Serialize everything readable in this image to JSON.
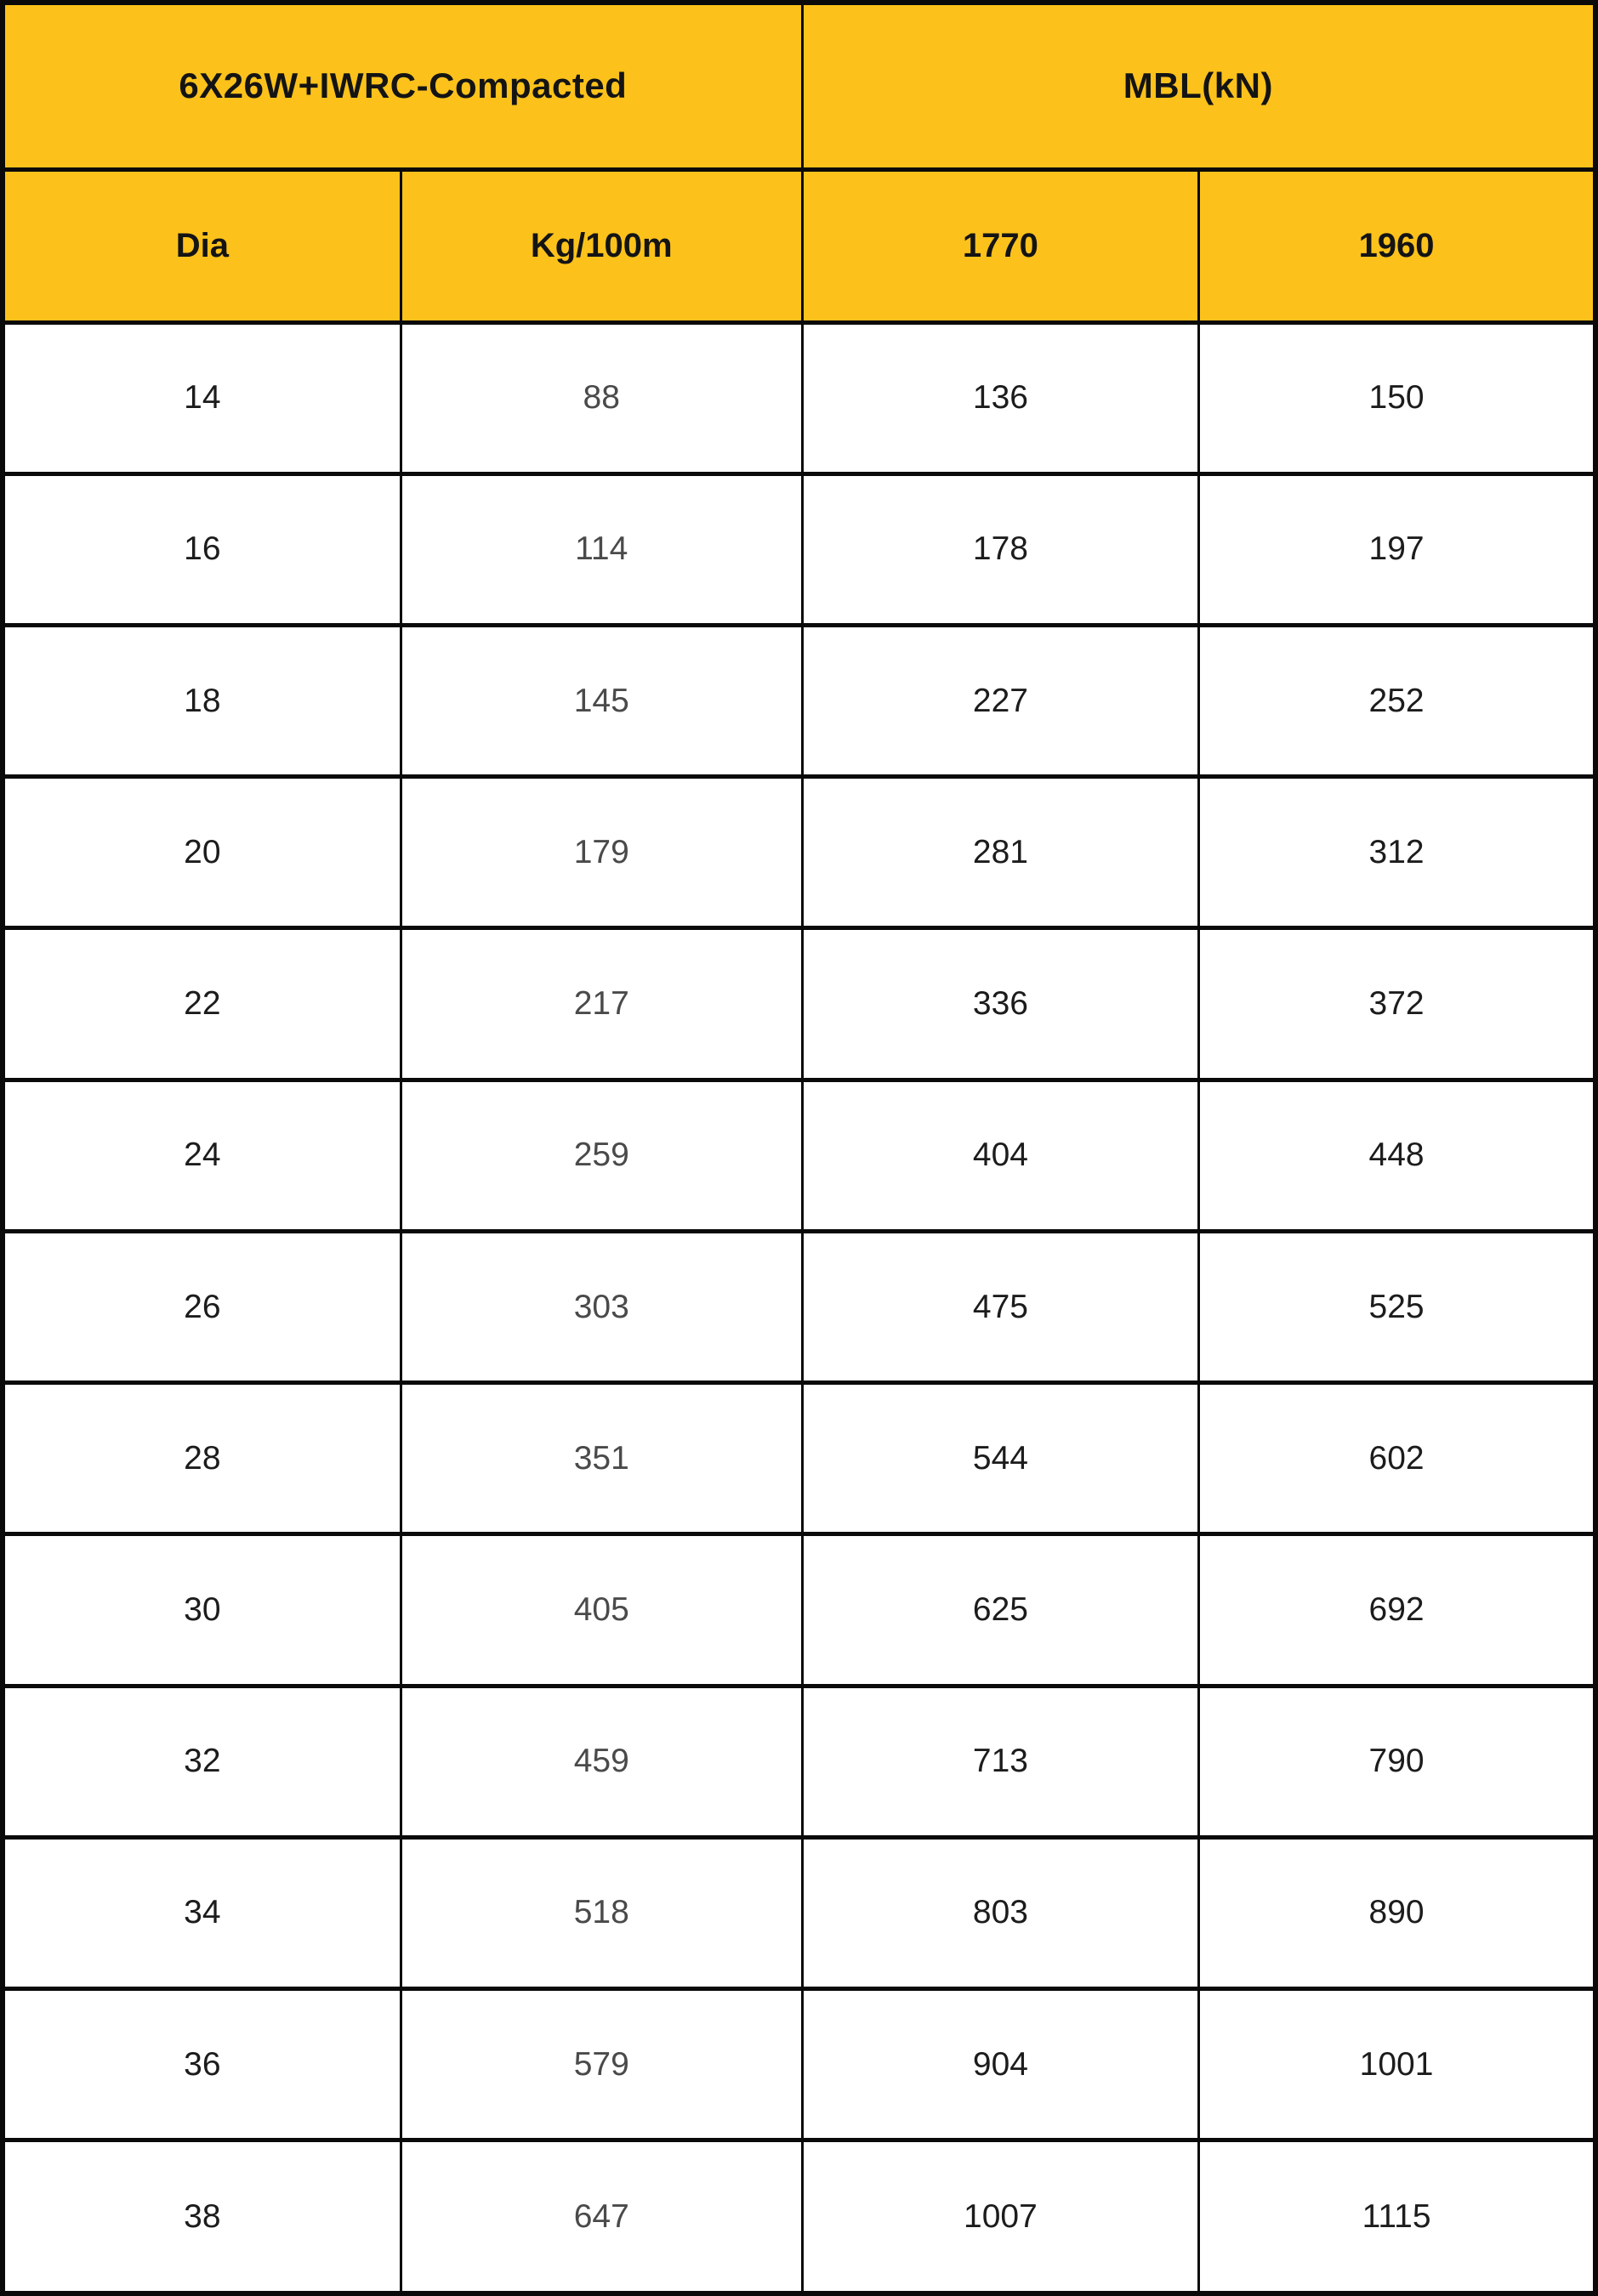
{
  "colors": {
    "header_bg": "#FCC21B",
    "border": "#0a0a0a",
    "text_dark": "#1c1c1c",
    "text_gray": "#4a4a4a"
  },
  "table": {
    "header_top": [
      {
        "label": "6X26W+IWRC-Compacted",
        "colspan": 2
      },
      {
        "label": "MBL(kN)",
        "colspan": 2
      }
    ],
    "columns": [
      "Dia",
      "Kg/100m",
      "1770",
      "1960"
    ],
    "rows": [
      [
        "14",
        "88",
        "136",
        "150"
      ],
      [
        "16",
        "114",
        "178",
        "197"
      ],
      [
        "18",
        "145",
        "227",
        "252"
      ],
      [
        "20",
        "179",
        "281",
        "312"
      ],
      [
        "22",
        "217",
        "336",
        "372"
      ],
      [
        "24",
        "259",
        "404",
        "448"
      ],
      [
        "26",
        "303",
        "475",
        "525"
      ],
      [
        "28",
        "351",
        "544",
        "602"
      ],
      [
        "30",
        "405",
        "625",
        "692"
      ],
      [
        "32",
        "459",
        "713",
        "790"
      ],
      [
        "34",
        "518",
        "803",
        "890"
      ],
      [
        "36",
        "579",
        "904",
        "1001"
      ],
      [
        "38",
        "647",
        "1007",
        "1115"
      ]
    ]
  }
}
